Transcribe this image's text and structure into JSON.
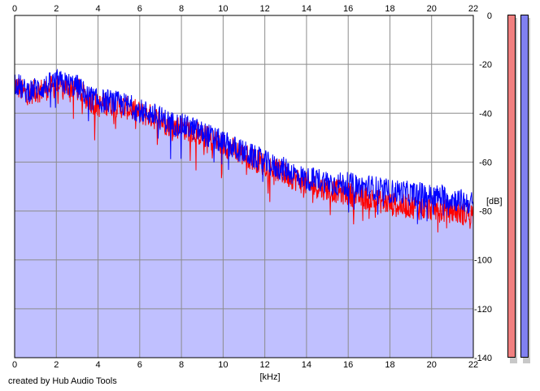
{
  "chart_data": {
    "type": "area",
    "xlabel": "[kHz]",
    "ylabel": "[dB]",
    "xlim": [
      0,
      22
    ],
    "ylim": [
      -140,
      0
    ],
    "x_ticks": [
      "0",
      "2",
      "4",
      "6",
      "8",
      "10",
      "12",
      "14",
      "16",
      "18",
      "20",
      "22"
    ],
    "y_ticks": [
      "0",
      "-20",
      "-40",
      "-60",
      "-80",
      "-100",
      "-120",
      "-140"
    ],
    "grid": true,
    "series": [
      {
        "color": "#ff0000",
        "x": [
          0,
          0.5,
          1,
          1.5,
          2,
          2.5,
          3,
          3.5,
          4,
          4.5,
          5,
          5.5,
          6,
          6.5,
          7,
          7.5,
          8,
          8.5,
          9,
          9.5,
          10,
          10.5,
          11,
          11.5,
          12,
          12.5,
          13,
          13.5,
          14,
          14.5,
          15,
          15.5,
          16,
          16.5,
          17,
          17.5,
          18,
          18.5,
          19,
          19.5,
          20,
          20.5,
          21,
          21.5,
          22
        ],
        "values": [
          -28,
          -32,
          -31,
          -30,
          -29,
          -29,
          -30,
          -34,
          -37,
          -36,
          -37,
          -38,
          -40,
          -41,
          -43,
          -45,
          -46,
          -47,
          -49,
          -51,
          -53,
          -55,
          -57,
          -59,
          -61,
          -63,
          -65,
          -67,
          -69,
          -70,
          -71,
          -72,
          -73,
          -74,
          -75,
          -76,
          -77,
          -78,
          -78,
          -79,
          -79,
          -80,
          -80,
          -81,
          -81
        ]
      },
      {
        "color": "#0000ff",
        "x": [
          0,
          0.5,
          1,
          1.5,
          2,
          2.5,
          3,
          3.5,
          4,
          4.5,
          5,
          5.5,
          6,
          6.5,
          7,
          7.5,
          8,
          8.5,
          9,
          9.5,
          10,
          10.5,
          11,
          11.5,
          12,
          12.5,
          13,
          13.5,
          14,
          14.5,
          15,
          15.5,
          16,
          16.5,
          17,
          17.5,
          18,
          18.5,
          19,
          19.5,
          20,
          20.5,
          21,
          21.5,
          22
        ],
        "values": [
          -27,
          -31,
          -30,
          -29,
          -27,
          -28,
          -29,
          -33,
          -35,
          -35,
          -36,
          -37,
          -39,
          -40,
          -42,
          -44,
          -45,
          -46,
          -48,
          -50,
          -52,
          -54,
          -56,
          -58,
          -60,
          -62,
          -63,
          -65,
          -67,
          -67,
          -68,
          -69,
          -69,
          -70,
          -70,
          -71,
          -72,
          -72,
          -73,
          -73,
          -74,
          -74,
          -75,
          -76,
          -77
        ]
      }
    ],
    "fill_color": "#c0c0ff"
  },
  "credit": "created by Hub Audio Tools",
  "meters": [
    {
      "color": "#f08080"
    },
    {
      "color": "#8080f0"
    }
  ]
}
